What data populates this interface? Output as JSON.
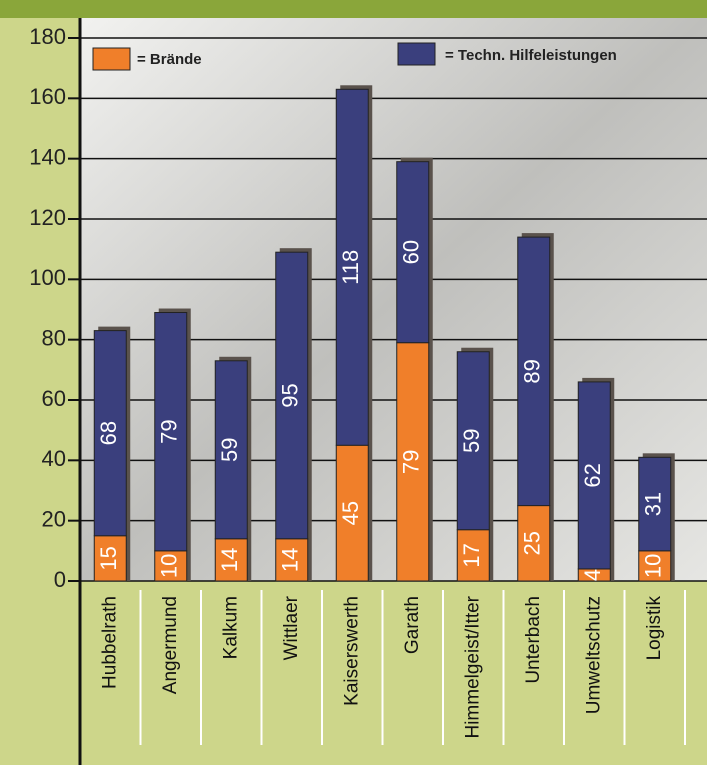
{
  "chart_data": {
    "type": "stacked_bar",
    "categories": [
      "Hubbelrath",
      "Angermund",
      "Kalkum",
      "Wittlaer",
      "Kaiserswerth",
      "Garath",
      "Himmelgeist/Itter",
      "Unterbach",
      "Umweltschutz",
      "Logistik"
    ],
    "series": [
      {
        "name": "= Brände",
        "color": "#f07f2a",
        "values": [
          15,
          10,
          14,
          14,
          45,
          79,
          17,
          25,
          4,
          10
        ]
      },
      {
        "name": "= Techn. Hilfeleistungen",
        "color": "#3a3f7d",
        "values": [
          68,
          79,
          59,
          95,
          118,
          60,
          59,
          89,
          62,
          31
        ]
      }
    ],
    "ylim": [
      0,
      180
    ],
    "yticks": [
      0,
      20,
      40,
      60,
      80,
      100,
      120,
      140,
      160,
      180
    ],
    "grid": true
  }
}
